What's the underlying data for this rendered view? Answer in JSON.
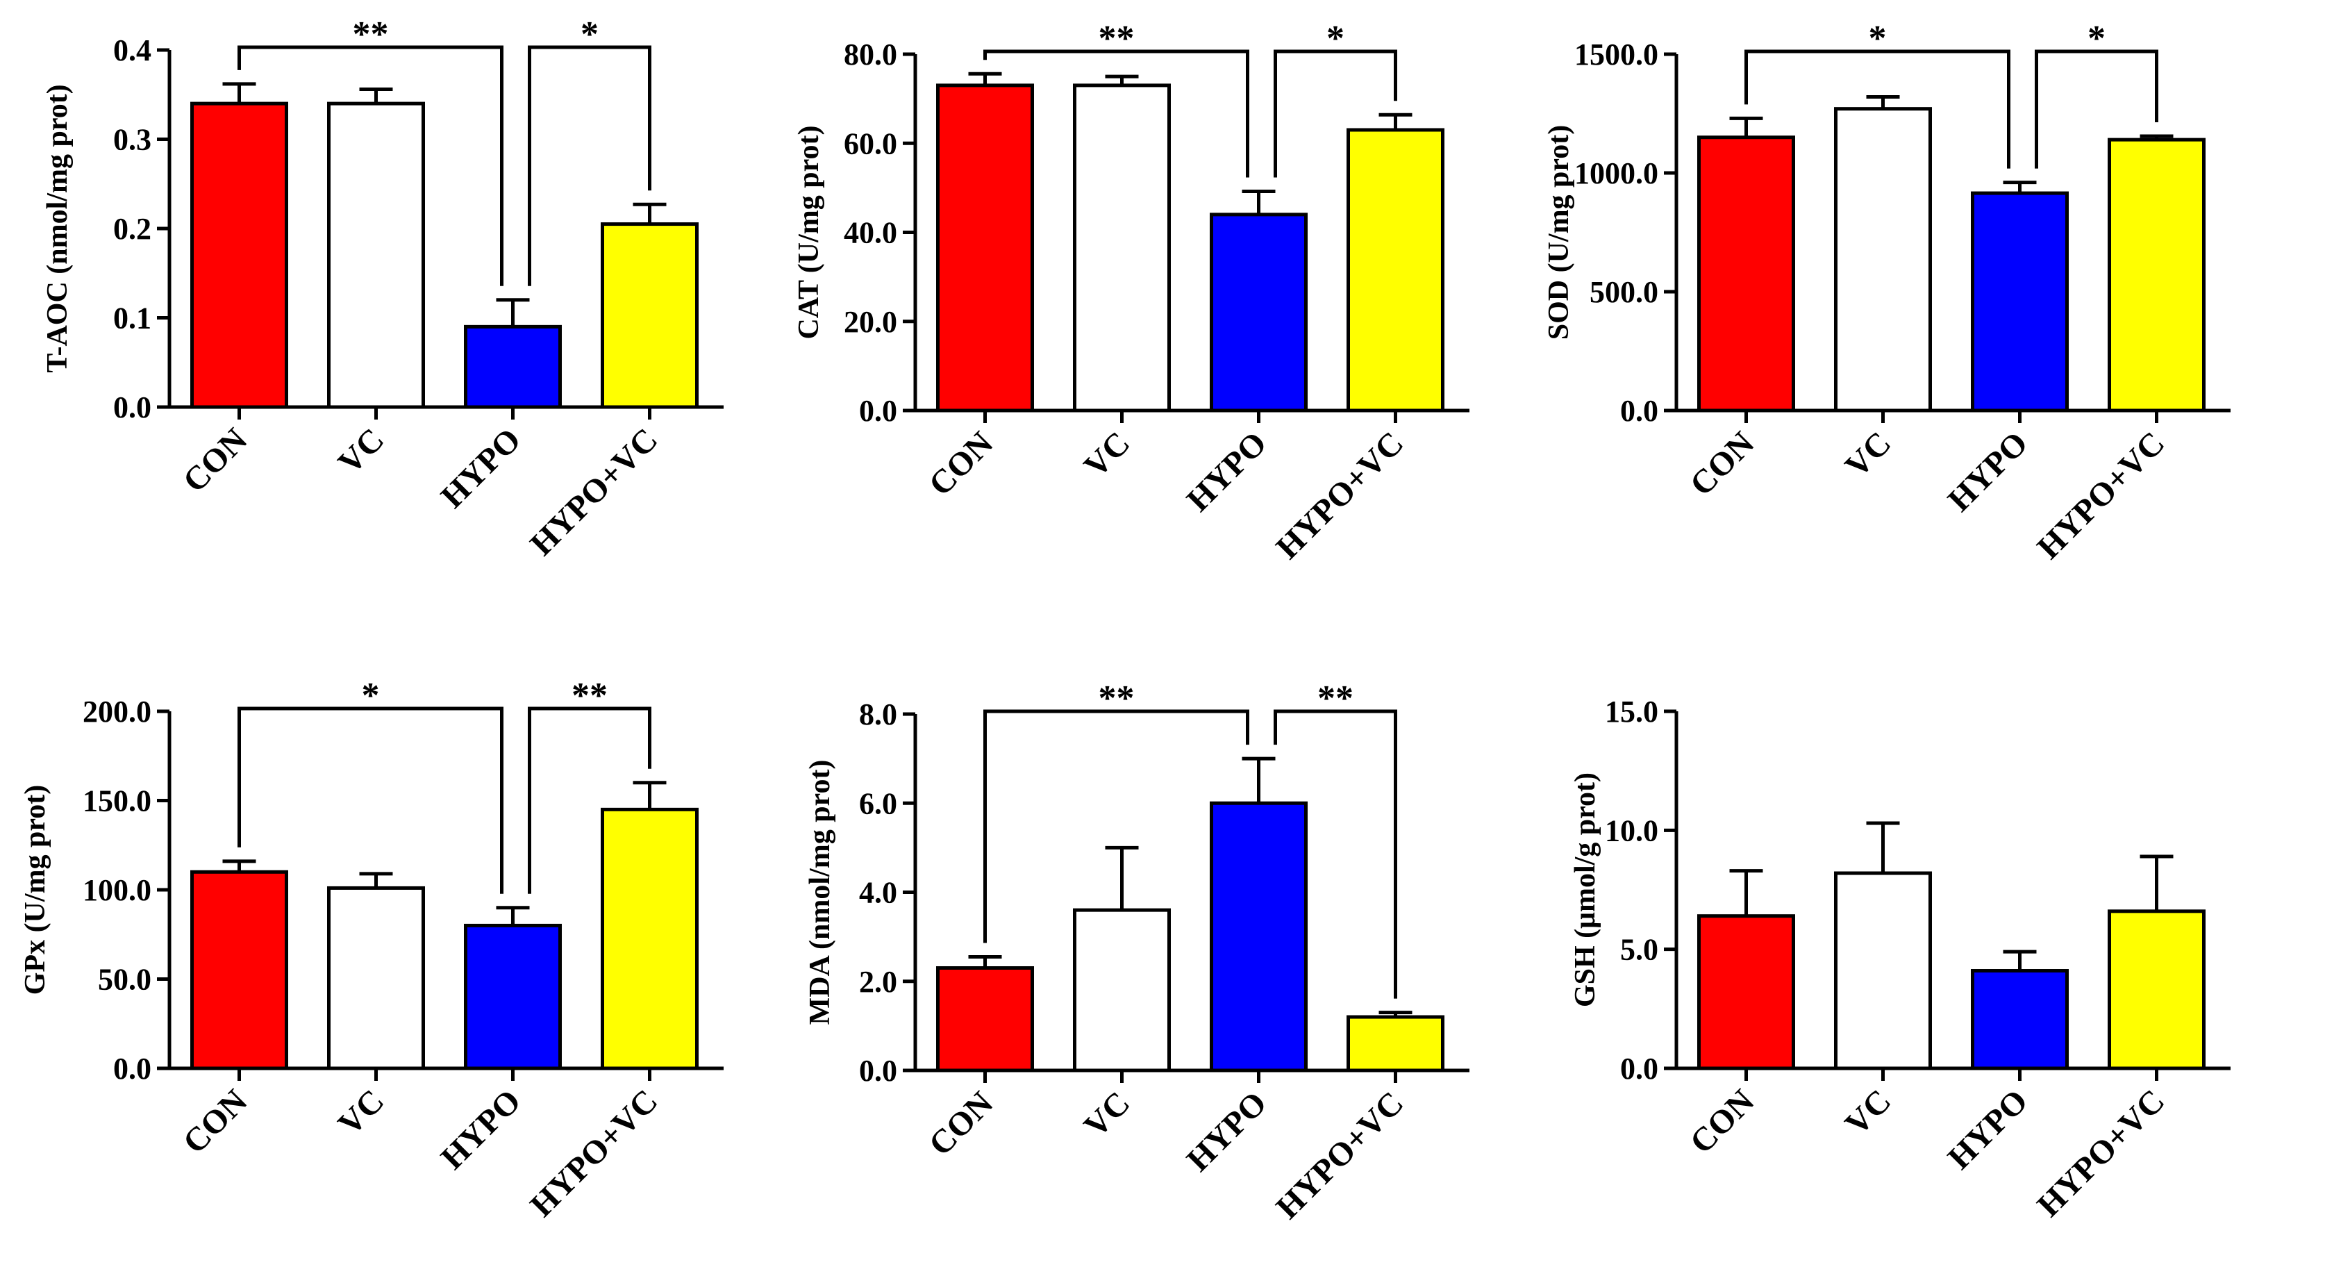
{
  "colors": {
    "CON": "#ff0000",
    "VC": "#ffffff",
    "HYPO": "#0000ff",
    "HYPO+VC": "#ffff00",
    "stroke": "#000000"
  },
  "chart_data": [
    {
      "type": "bar",
      "ylabel": "T-AOC (nmol/mg prot)",
      "categories": [
        "CON",
        "VC",
        "HYPO",
        "HYPO+VC"
      ],
      "values": [
        0.34,
        0.34,
        0.09,
        0.205
      ],
      "errors": [
        0.022,
        0.016,
        0.03,
        0.022
      ],
      "ylim": [
        0,
        0.4
      ],
      "yticks": [
        "0.0",
        "0.1",
        "0.2",
        "0.3",
        "0.4"
      ],
      "significance": [
        {
          "from": 0,
          "to": 2,
          "label": "**"
        },
        {
          "from": 2,
          "to": 3,
          "label": "*"
        }
      ]
    },
    {
      "type": "bar",
      "ylabel": "CAT (U/mg prot)",
      "categories": [
        "CON",
        "VC",
        "HYPO",
        "HYPO+VC"
      ],
      "values": [
        73,
        73,
        44,
        63
      ],
      "errors": [
        2.6,
        2.0,
        5.2,
        3.4
      ],
      "ylim": [
        0,
        80
      ],
      "yticks": [
        "0.0",
        "20.0",
        "40.0",
        "60.0",
        "80.0"
      ],
      "significance": [
        {
          "from": 0,
          "to": 2,
          "label": "**"
        },
        {
          "from": 2,
          "to": 3,
          "label": "*"
        }
      ]
    },
    {
      "type": "bar",
      "ylabel": "SOD (U/mg prot)",
      "categories": [
        "CON",
        "VC",
        "HYPO",
        "HYPO+VC"
      ],
      "values": [
        1150,
        1270,
        915,
        1140
      ],
      "errors": [
        80,
        50,
        45,
        15
      ],
      "ylim": [
        0,
        1500
      ],
      "yticks": [
        "0.0",
        "500.0",
        "1000.0",
        "1500.0"
      ],
      "significance": [
        {
          "from": 0,
          "to": 2,
          "label": "*"
        },
        {
          "from": 2,
          "to": 3,
          "label": "*"
        }
      ]
    },
    {
      "type": "bar",
      "ylabel": "GPx (U/mg prot)",
      "categories": [
        "CON",
        "VC",
        "HYPO",
        "HYPO+VC"
      ],
      "values": [
        110,
        101,
        80,
        145
      ],
      "errors": [
        6,
        8,
        10,
        15
      ],
      "ylim": [
        0,
        200
      ],
      "yticks": [
        "0.0",
        "50.0",
        "100.0",
        "150.0",
        "200.0"
      ],
      "significance": [
        {
          "from": 0,
          "to": 2,
          "label": "*"
        },
        {
          "from": 2,
          "to": 3,
          "label": "**"
        }
      ]
    },
    {
      "type": "bar",
      "ylabel": "MDA (nmol/mg prot)",
      "categories": [
        "CON",
        "VC",
        "HYPO",
        "HYPO+VC"
      ],
      "values": [
        2.3,
        3.6,
        6.0,
        1.2
      ],
      "errors": [
        0.25,
        1.4,
        1.0,
        0.1
      ],
      "ylim": [
        0,
        8
      ],
      "yticks": [
        "0.0",
        "2.0",
        "4.0",
        "6.0",
        "8.0"
      ],
      "significance": [
        {
          "from": 0,
          "to": 2,
          "label": "**"
        },
        {
          "from": 2,
          "to": 3,
          "label": "**"
        }
      ]
    },
    {
      "type": "bar",
      "ylabel": "GSH (μmol/g prot)",
      "categories": [
        "CON",
        "VC",
        "HYPO",
        "HYPO+VC"
      ],
      "values": [
        6.4,
        8.2,
        4.1,
        6.6
      ],
      "errors": [
        1.9,
        2.1,
        0.8,
        2.3
      ],
      "ylim": [
        0,
        15
      ],
      "yticks": [
        "0.0",
        "5.0",
        "10.0",
        "15.0"
      ],
      "significance": []
    }
  ]
}
